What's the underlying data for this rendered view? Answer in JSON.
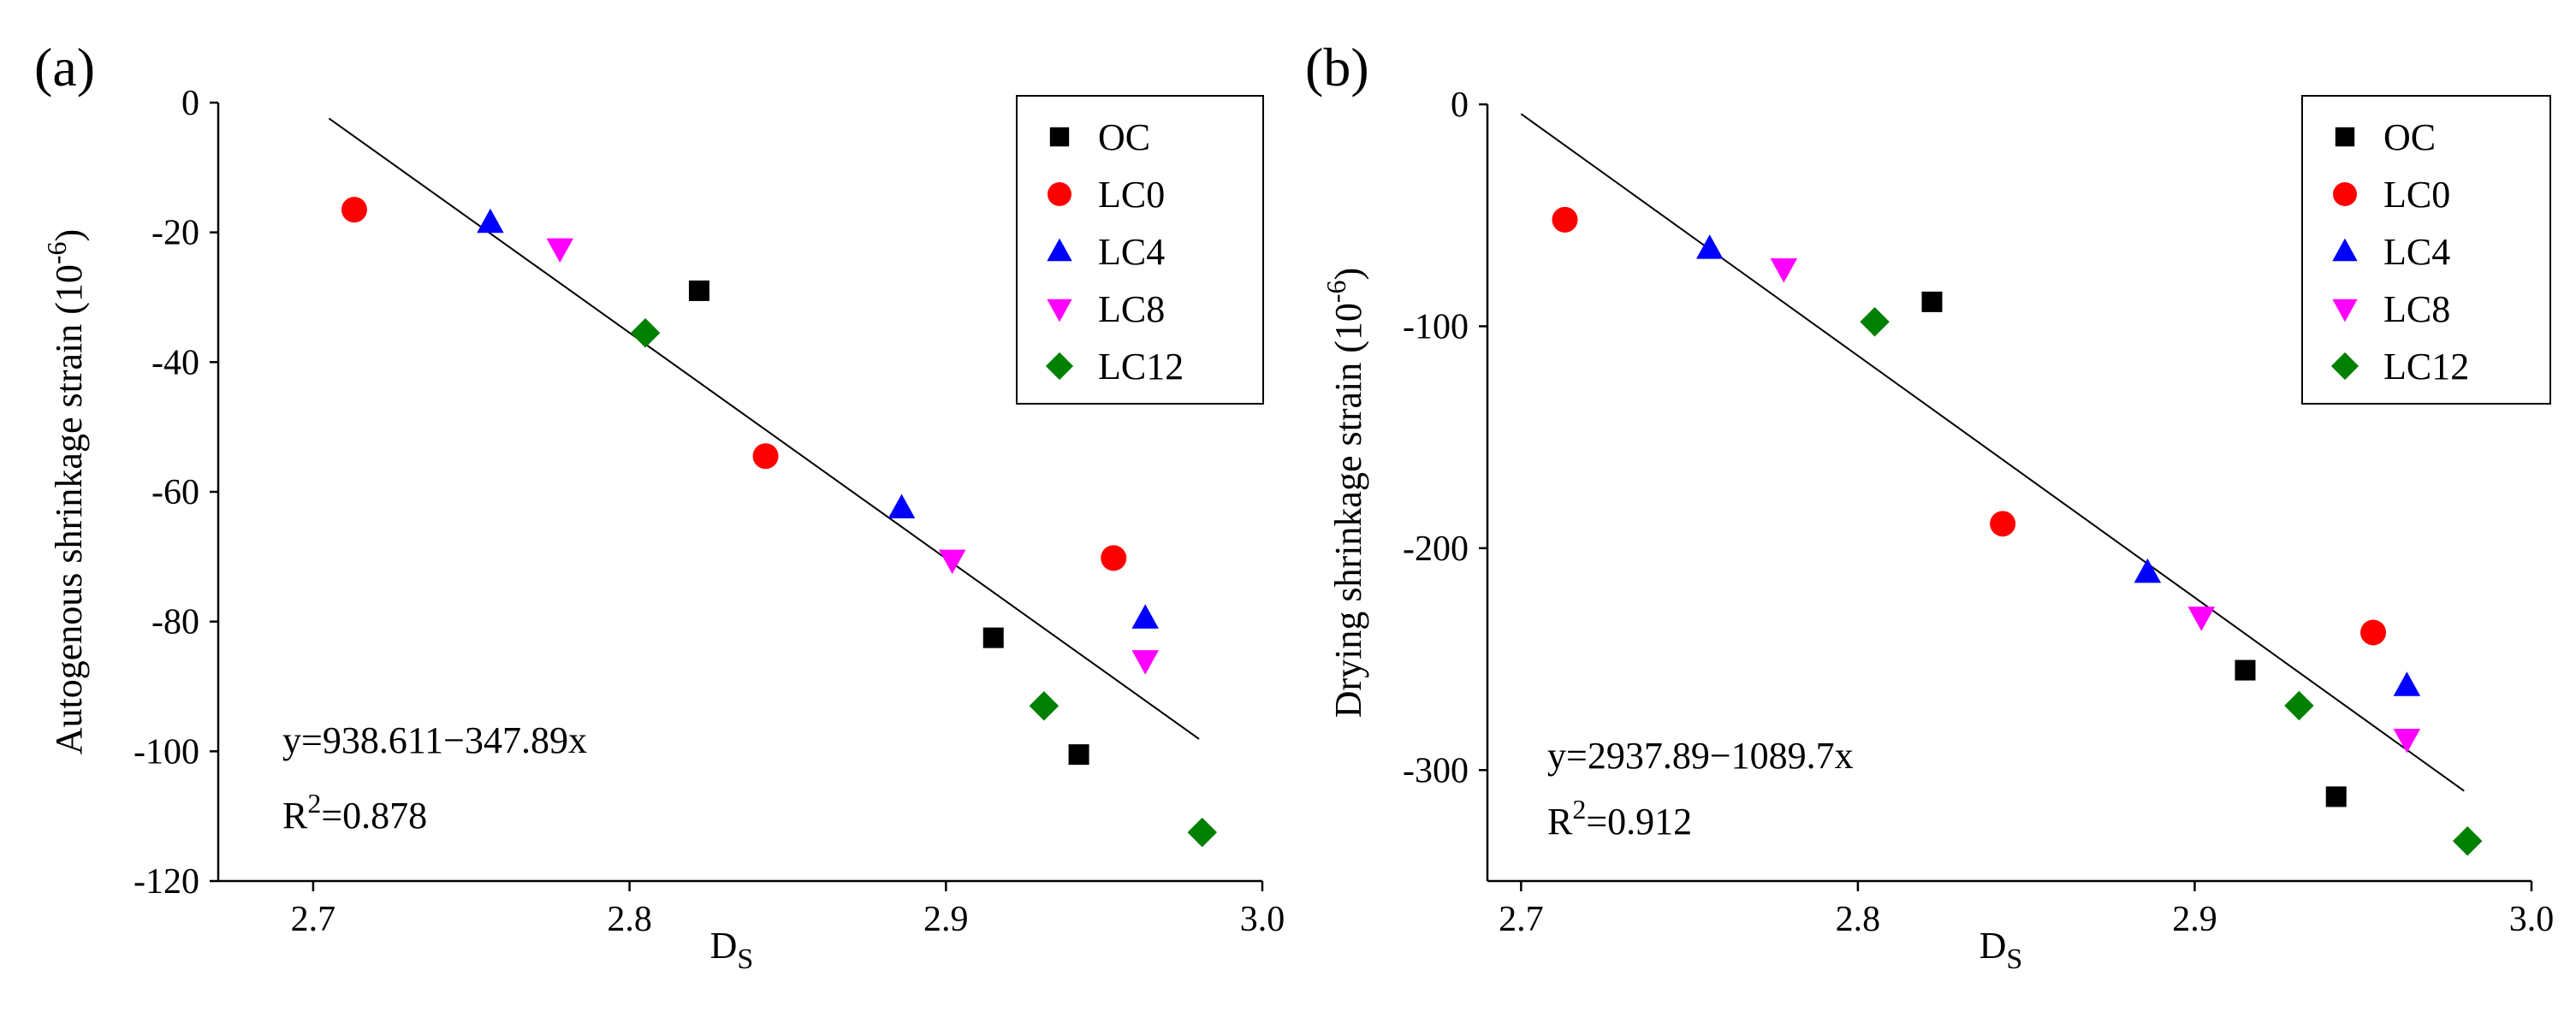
{
  "figure": {
    "legend_entries": [
      {
        "name": "OC",
        "marker": "square",
        "color": "#000000"
      },
      {
        "name": "LC0",
        "marker": "circle",
        "color": "#ff0000"
      },
      {
        "name": "LC4",
        "marker": "triangle-up",
        "color": "#0000ff"
      },
      {
        "name": "LC8",
        "marker": "triangle-down",
        "color": "#ff00ff"
      },
      {
        "name": "LC12",
        "marker": "diamond",
        "color": "#008000"
      }
    ]
  },
  "chart_data": [
    {
      "panel_label": "(a)",
      "type": "scatter",
      "xlabel": "D",
      "xlabel_sub": "S",
      "ylabel": "Autogenous shrinkage strain (10",
      "ylabel_sup": "-6",
      "ylabel_end": ")",
      "xlim": [
        2.67,
        3.0
      ],
      "ylim": [
        -120,
        0
      ],
      "xticks": [
        2.7,
        2.8,
        2.9,
        3.0
      ],
      "xtick_labels": [
        "2.7",
        "2.8",
        "2.9",
        "3.0"
      ],
      "yticks": [
        0,
        -20,
        -40,
        -60,
        -80,
        -100,
        -120
      ],
      "ytick_labels": [
        "0",
        "-20",
        "-40",
        "-60",
        "-80",
        "-100",
        "-120"
      ],
      "legend_position": "top-right",
      "series": [
        {
          "name": "OC",
          "points": [
            [
              2.822,
              -29
            ],
            [
              2.915,
              -82.5
            ],
            [
              2.942,
              -100.5
            ]
          ]
        },
        {
          "name": "LC0",
          "points": [
            [
              2.713,
              -16.5
            ],
            [
              2.843,
              -54.5
            ],
            [
              2.953,
              -70.2
            ]
          ]
        },
        {
          "name": "LC4",
          "points": [
            [
              2.756,
              -18.5
            ],
            [
              2.886,
              -62.5
            ],
            [
              2.963,
              -79.5
            ]
          ]
        },
        {
          "name": "LC8",
          "points": [
            [
              2.778,
              -22.5
            ],
            [
              2.902,
              -70.5
            ],
            [
              2.963,
              -86
            ]
          ]
        },
        {
          "name": "LC12",
          "points": [
            [
              2.805,
              -35.5
            ],
            [
              2.931,
              -93
            ],
            [
              2.981,
              -112.5
            ]
          ]
        }
      ],
      "fit_line": {
        "intercept": 938.611,
        "slope": -347.89,
        "x_range": [
          2.705,
          2.98
        ]
      },
      "equation_text": "y=938.611−347.89x",
      "r2_label": "R",
      "r2_sup": "2",
      "r2_value": "=0.878"
    },
    {
      "panel_label": "(b)",
      "type": "scatter",
      "xlabel": "D",
      "xlabel_sub": "S",
      "ylabel": "Drying shrinkage strain (10",
      "ylabel_sup": "-6",
      "ylabel_end": ")",
      "xlim": [
        2.69,
        3.0
      ],
      "ylim": [
        -350,
        0
      ],
      "xticks": [
        2.7,
        2.8,
        2.9,
        3.0
      ],
      "xtick_labels": [
        "2.7",
        "2.8",
        "2.9",
        "3.0"
      ],
      "yticks": [
        0,
        -100,
        -200,
        -300
      ],
      "ytick_labels": [
        "0",
        "-100",
        "-200",
        "-300"
      ],
      "legend_position": "top-right",
      "series": [
        {
          "name": "OC",
          "points": [
            [
              2.822,
              -89
            ],
            [
              2.915,
              -255
            ],
            [
              2.942,
              -312
            ]
          ]
        },
        {
          "name": "LC0",
          "points": [
            [
              2.713,
              -52
            ],
            [
              2.843,
              -189
            ],
            [
              2.953,
              -238
            ]
          ]
        },
        {
          "name": "LC4",
          "points": [
            [
              2.756,
              -65
            ],
            [
              2.886,
              -211
            ],
            [
              2.963,
              -262
            ]
          ]
        },
        {
          "name": "LC8",
          "points": [
            [
              2.778,
              -74
            ],
            [
              2.902,
              -231
            ],
            [
              2.963,
              -286
            ]
          ]
        },
        {
          "name": "LC12",
          "points": [
            [
              2.805,
              -98
            ],
            [
              2.931,
              -271
            ],
            [
              2.981,
              -332
            ]
          ]
        }
      ],
      "fit_line": {
        "intercept": 2937.89,
        "slope": -1089.7,
        "x_range": [
          2.7,
          2.98
        ]
      },
      "equation_text": "y=2937.89−1089.7x",
      "r2_label": "R",
      "r2_sup": "2",
      "r2_value": "=0.912"
    }
  ]
}
